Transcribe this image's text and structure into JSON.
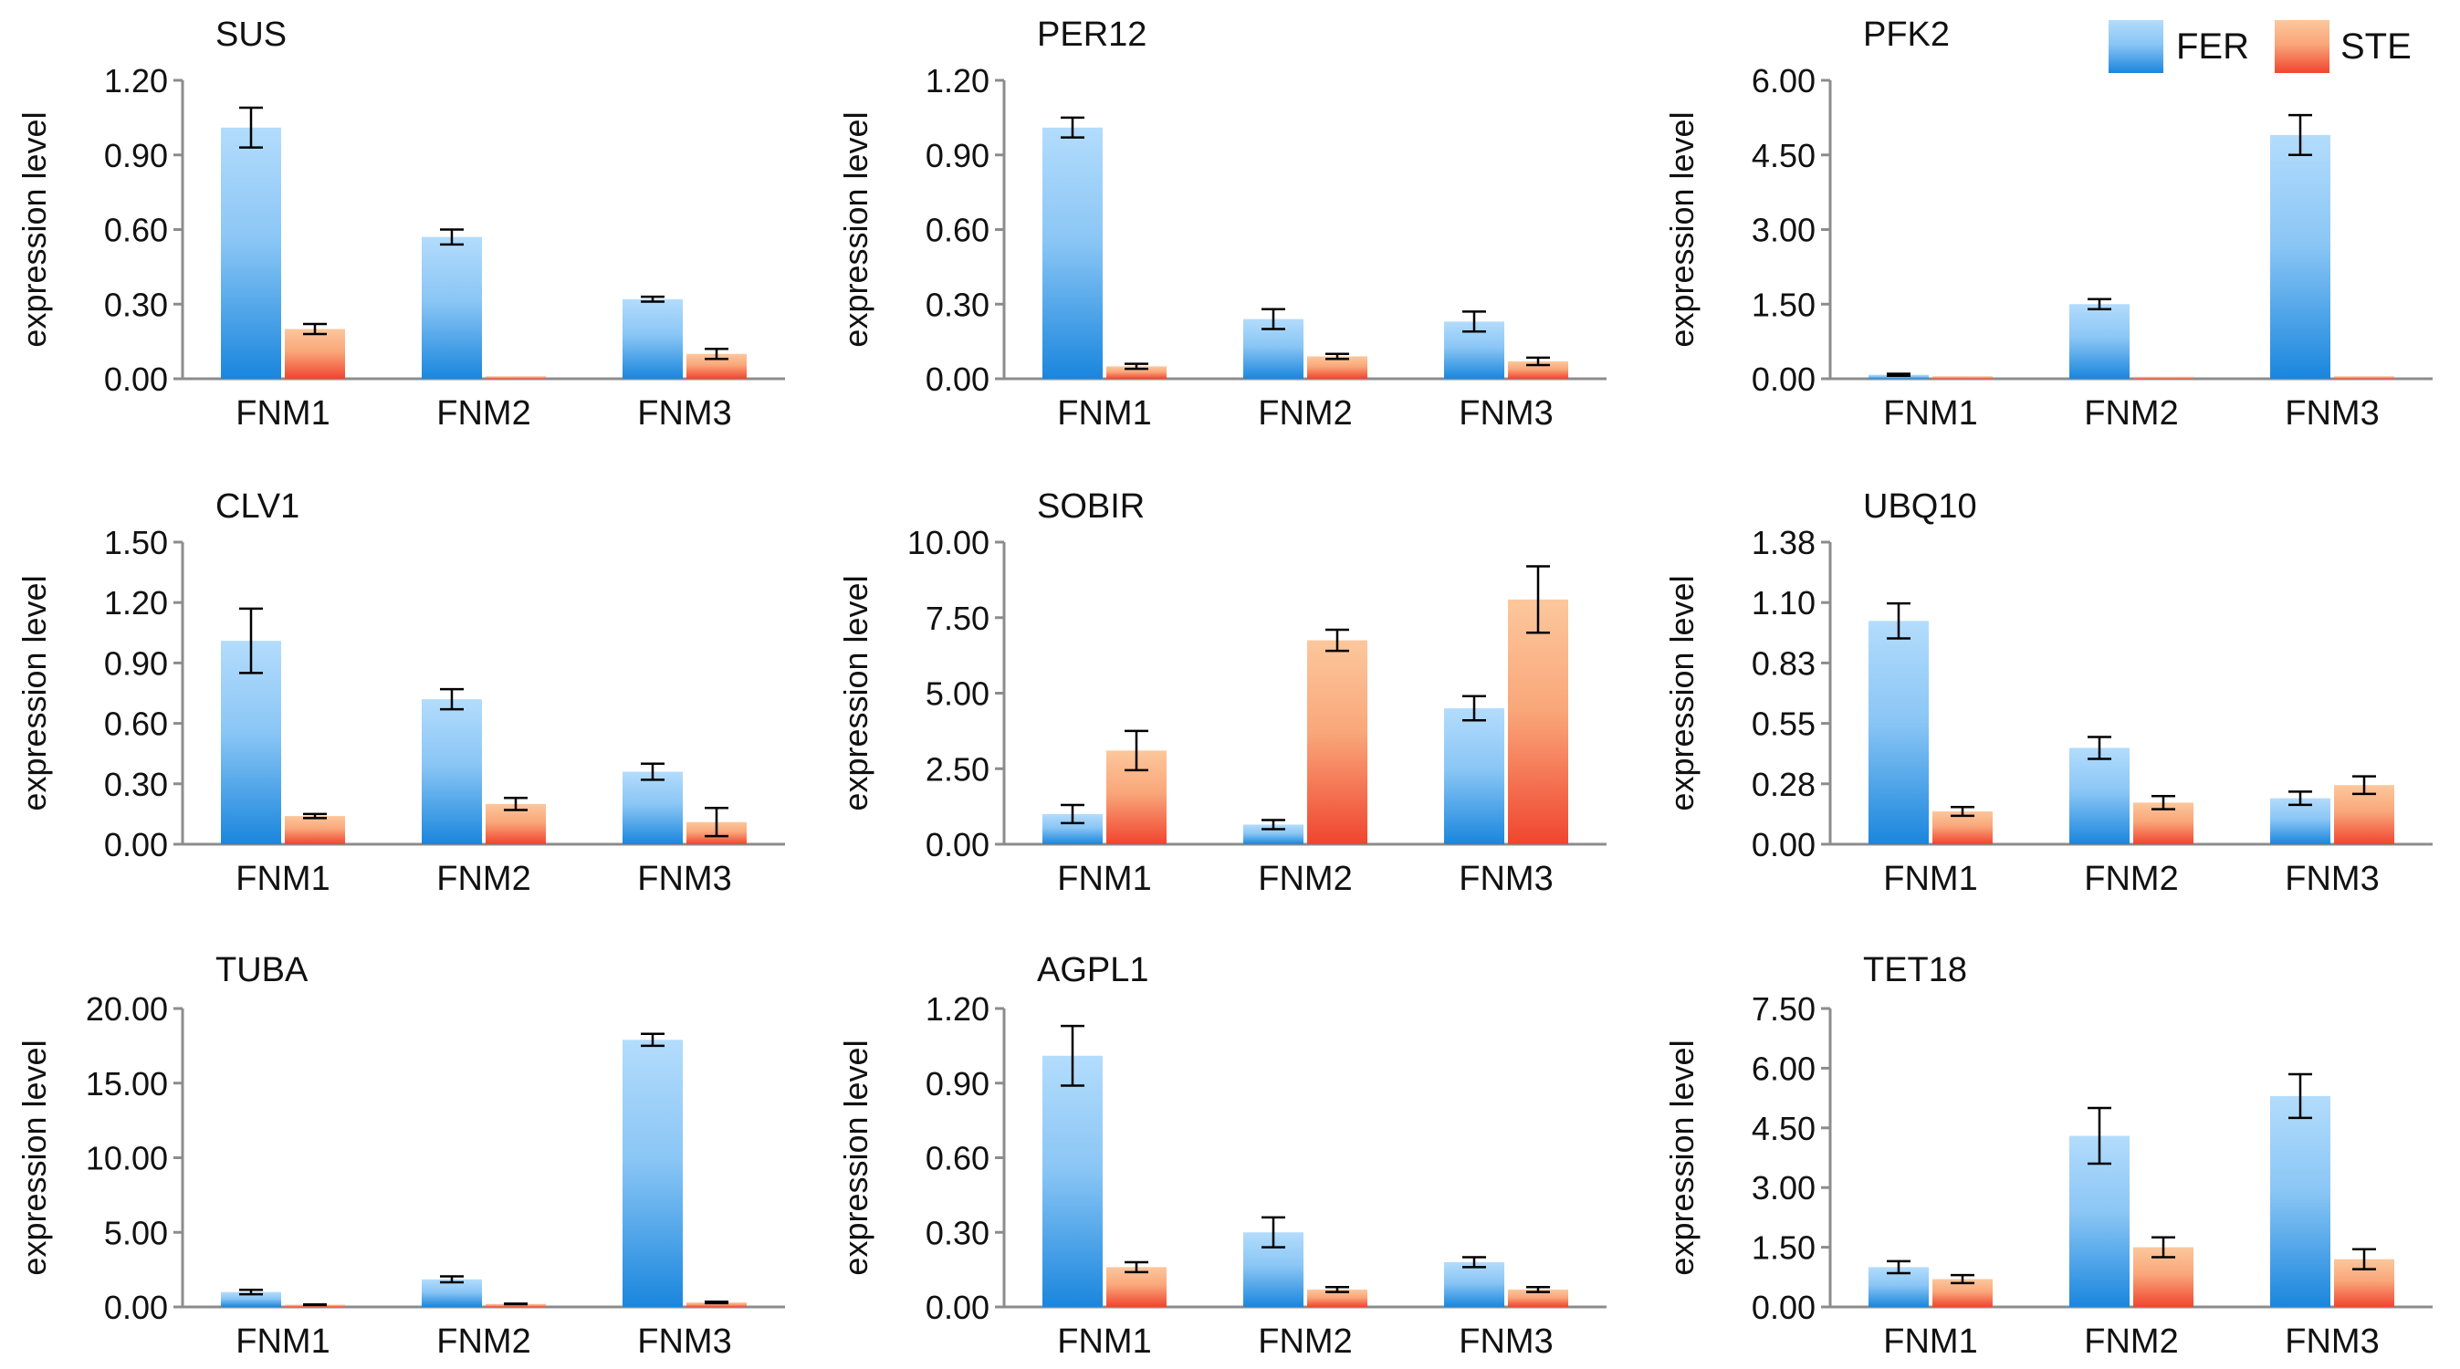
{
  "legend": {
    "items": [
      {
        "label": "FER"
      },
      {
        "label": "STE"
      }
    ]
  },
  "colors": {
    "fer_top": "#b3dcfc",
    "fer_bottom": "#1a86dd",
    "ste_top": "#fcc79c",
    "ste_bottom": "#f0452f",
    "axis": "#8c8c8c",
    "error_bar": "#000000"
  },
  "chart_data": [
    {
      "type": "bar",
      "title": "SUS",
      "xlabel": "",
      "ylabel": "expression level",
      "categories": [
        "FNM1",
        "FNM2",
        "FNM3"
      ],
      "ylim": [
        0,
        1.2
      ],
      "yticks": [
        "0.00",
        "0.30",
        "0.60",
        "0.90",
        "1.20"
      ],
      "series": [
        {
          "name": "FER",
          "values": [
            1.01,
            0.57,
            0.32
          ],
          "errors": [
            0.08,
            0.03,
            0.01
          ]
        },
        {
          "name": "STE",
          "values": [
            0.2,
            0.01,
            0.1
          ],
          "errors": [
            0.02,
            0.0,
            0.02
          ]
        }
      ]
    },
    {
      "type": "bar",
      "title": "PER12",
      "xlabel": "",
      "ylabel": "expression level",
      "categories": [
        "FNM1",
        "FNM2",
        "FNM3"
      ],
      "ylim": [
        0,
        1.2
      ],
      "yticks": [
        "0.00",
        "0.30",
        "0.60",
        "0.90",
        "1.20"
      ],
      "series": [
        {
          "name": "FER",
          "values": [
            1.01,
            0.24,
            0.23
          ],
          "errors": [
            0.04,
            0.04,
            0.04
          ]
        },
        {
          "name": "STE",
          "values": [
            0.05,
            0.09,
            0.07
          ],
          "errors": [
            0.01,
            0.01,
            0.015
          ]
        }
      ]
    },
    {
      "type": "bar",
      "title": "PFK2",
      "xlabel": "",
      "ylabel": "expression level",
      "categories": [
        "FNM1",
        "FNM2",
        "FNM3"
      ],
      "ylim": [
        0,
        6
      ],
      "yticks": [
        "0.00",
        "1.50",
        "3.00",
        "4.50",
        "6.00"
      ],
      "series": [
        {
          "name": "FER",
          "values": [
            0.08,
            1.5,
            4.9
          ],
          "errors": [
            0.02,
            0.1,
            0.4
          ]
        },
        {
          "name": "STE",
          "values": [
            0.05,
            0.04,
            0.05
          ],
          "errors": [
            0,
            0,
            0
          ]
        }
      ]
    },
    {
      "type": "bar",
      "title": "CLV1",
      "xlabel": "",
      "ylabel": "expression level",
      "categories": [
        "FNM1",
        "FNM2",
        "FNM3"
      ],
      "ylim": [
        0,
        1.5
      ],
      "yticks": [
        "0.00",
        "0.30",
        "0.60",
        "0.90",
        "1.20",
        "1.50"
      ],
      "series": [
        {
          "name": "FER",
          "values": [
            1.01,
            0.72,
            0.36
          ],
          "errors": [
            0.16,
            0.05,
            0.04
          ]
        },
        {
          "name": "STE",
          "values": [
            0.14,
            0.2,
            0.11
          ],
          "errors": [
            0.01,
            0.03,
            0.07
          ]
        }
      ]
    },
    {
      "type": "bar",
      "title": "SOBIR",
      "xlabel": "",
      "ylabel": "expression level",
      "categories": [
        "FNM1",
        "FNM2",
        "FNM3"
      ],
      "ylim": [
        0,
        10
      ],
      "yticks": [
        "0.00",
        "2.50",
        "5.00",
        "7.50",
        "10.00"
      ],
      "series": [
        {
          "name": "FER",
          "values": [
            1.0,
            0.65,
            4.5
          ],
          "errors": [
            0.3,
            0.15,
            0.4
          ]
        },
        {
          "name": "STE",
          "values": [
            3.1,
            6.75,
            8.1
          ],
          "errors": [
            0.65,
            0.35,
            1.1
          ]
        }
      ]
    },
    {
      "type": "bar",
      "title": "UBQ10",
      "xlabel": "",
      "ylabel": "expression level",
      "categories": [
        "FNM1",
        "FNM2",
        "FNM3"
      ],
      "ylim": [
        0,
        1.38
      ],
      "yticks": [
        "0.00",
        "0.28",
        "0.55",
        "0.83",
        "1.10",
        "1.38"
      ],
      "series": [
        {
          "name": "FER",
          "values": [
            1.02,
            0.44,
            0.21
          ],
          "errors": [
            0.08,
            0.05,
            0.03
          ]
        },
        {
          "name": "STE",
          "values": [
            0.15,
            0.19,
            0.27
          ],
          "errors": [
            0.02,
            0.03,
            0.04
          ]
        }
      ]
    },
    {
      "type": "bar",
      "title": "TUBA",
      "xlabel": "",
      "ylabel": "expression level",
      "categories": [
        "FNM1",
        "FNM2",
        "FNM3"
      ],
      "ylim": [
        0,
        20
      ],
      "yticks": [
        "0.00",
        "5.00",
        "10.00",
        "15.00",
        "20.00"
      ],
      "series": [
        {
          "name": "FER",
          "values": [
            1.0,
            1.85,
            17.9
          ],
          "errors": [
            0.15,
            0.2,
            0.4
          ]
        },
        {
          "name": "STE",
          "values": [
            0.15,
            0.2,
            0.3
          ],
          "errors": [
            0.02,
            0.02,
            0.05
          ]
        }
      ]
    },
    {
      "type": "bar",
      "title": "AGPL1",
      "xlabel": "",
      "ylabel": "expression level",
      "categories": [
        "FNM1",
        "FNM2",
        "FNM3"
      ],
      "ylim": [
        0,
        1.2
      ],
      "yticks": [
        "0.00",
        "0.30",
        "0.60",
        "0.90",
        "1.20"
      ],
      "series": [
        {
          "name": "FER",
          "values": [
            1.01,
            0.3,
            0.18
          ],
          "errors": [
            0.12,
            0.06,
            0.02
          ]
        },
        {
          "name": "STE",
          "values": [
            0.16,
            0.07,
            0.07
          ],
          "errors": [
            0.02,
            0.01,
            0.01
          ]
        }
      ]
    },
    {
      "type": "bar",
      "title": "TET18",
      "xlabel": "",
      "ylabel": "expression level",
      "categories": [
        "FNM1",
        "FNM2",
        "FNM3"
      ],
      "ylim": [
        0,
        7.5
      ],
      "yticks": [
        "0.00",
        "1.50",
        "3.00",
        "4.50",
        "6.00",
        "7.50"
      ],
      "series": [
        {
          "name": "FER",
          "values": [
            1.0,
            4.3,
            5.3
          ],
          "errors": [
            0.15,
            0.7,
            0.55
          ]
        },
        {
          "name": "STE",
          "values": [
            0.7,
            1.5,
            1.2
          ],
          "errors": [
            0.1,
            0.25,
            0.25
          ]
        }
      ]
    }
  ]
}
